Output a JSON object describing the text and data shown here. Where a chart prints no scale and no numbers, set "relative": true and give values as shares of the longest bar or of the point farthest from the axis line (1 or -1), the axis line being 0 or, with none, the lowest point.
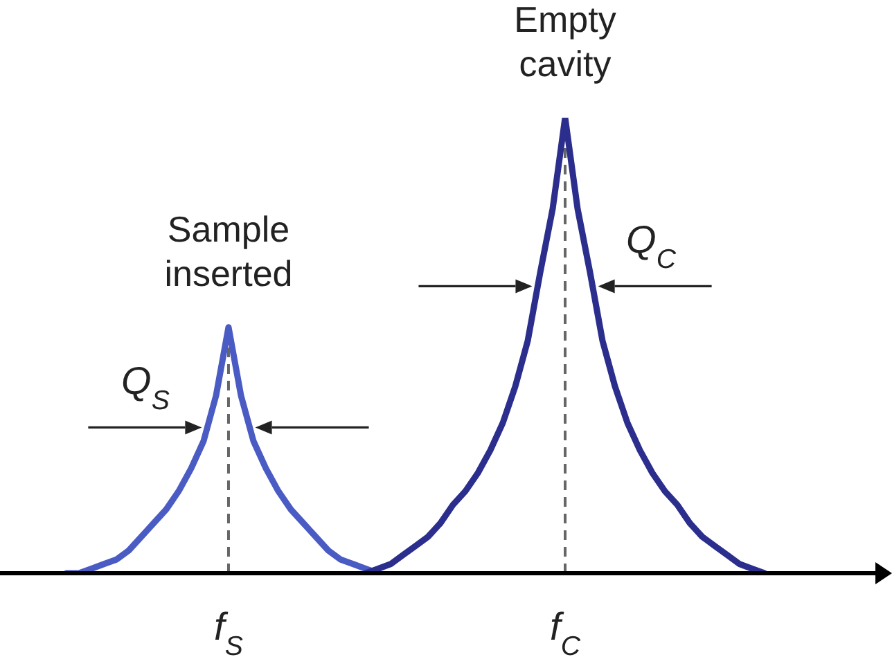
{
  "chart_data": {
    "type": "line",
    "relative": true,
    "marker": "none",
    "categories": [
      null,
      null,
      null,
      null,
      null,
      null,
      null,
      null,
      null,
      null,
      null,
      null,
      null,
      null,
      "f$_{S}$",
      null,
      null,
      null,
      null,
      null,
      null,
      null,
      null,
      null,
      null,
      null,
      null,
      null,
      null,
      null,
      null,
      null,
      null,
      null,
      null,
      null,
      null,
      null,
      null,
      null,
      null,
      "f$_{C}$",
      null,
      null,
      null,
      null,
      null,
      null,
      null,
      null,
      null,
      null,
      null,
      null,
      null,
      null,
      null,
      null,
      null
    ],
    "series": [
      {
        "name": "Sample inserted",
        "color": "#4a5bc4",
        "values": [
          null,
          0,
          0,
          0.01,
          0.02,
          0.03,
          0.05,
          0.08,
          0.11,
          0.14,
          0.18,
          0.23,
          0.29,
          0.39,
          0.54,
          0.39,
          0.29,
          0.23,
          0.18,
          0.14,
          0.11,
          0.08,
          0.05,
          0.03,
          0.02,
          0.01,
          0,
          null,
          null,
          null,
          null,
          null,
          null,
          null,
          null,
          null,
          null,
          null,
          null,
          null,
          null,
          null,
          null,
          null,
          null,
          null,
          null,
          null,
          null,
          null,
          null,
          null,
          null,
          null,
          null,
          null,
          null,
          null,
          null
        ]
      },
      {
        "name": "Empty cavity",
        "color": "#2b2e8c",
        "values": [
          null,
          null,
          null,
          null,
          null,
          null,
          null,
          null,
          null,
          null,
          null,
          null,
          null,
          null,
          null,
          null,
          null,
          null,
          null,
          null,
          null,
          null,
          null,
          null,
          null,
          0,
          0.01,
          0.02,
          0.04,
          0.06,
          0.08,
          0.11,
          0.15,
          0.18,
          0.22,
          0.27,
          0.33,
          0.41,
          0.51,
          0.66,
          0.8,
          1,
          0.8,
          0.66,
          0.51,
          0.41,
          0.33,
          0.27,
          0.22,
          0.18,
          0.15,
          0.11,
          0.08,
          0.06,
          0.04,
          0.02,
          0.01,
          0,
          null
        ]
      }
    ],
    "annotations": [
      {
        "text": "Q$_{S}$",
        "x": "f$_{S}$",
        "y": 0.32
      },
      {
        "text": "Q$_{C}$",
        "x": "f$_{C}$",
        "y": 0.63
      }
    ],
    "ref_lines": [
      {
        "axis": "x",
        "value": "f$_{S}$",
        "line_style": "dashed",
        "color": "#666666"
      },
      {
        "axis": "x",
        "value": "f$_{C}$",
        "line_style": "dashed",
        "color": "#666666"
      }
    ]
  }
}
